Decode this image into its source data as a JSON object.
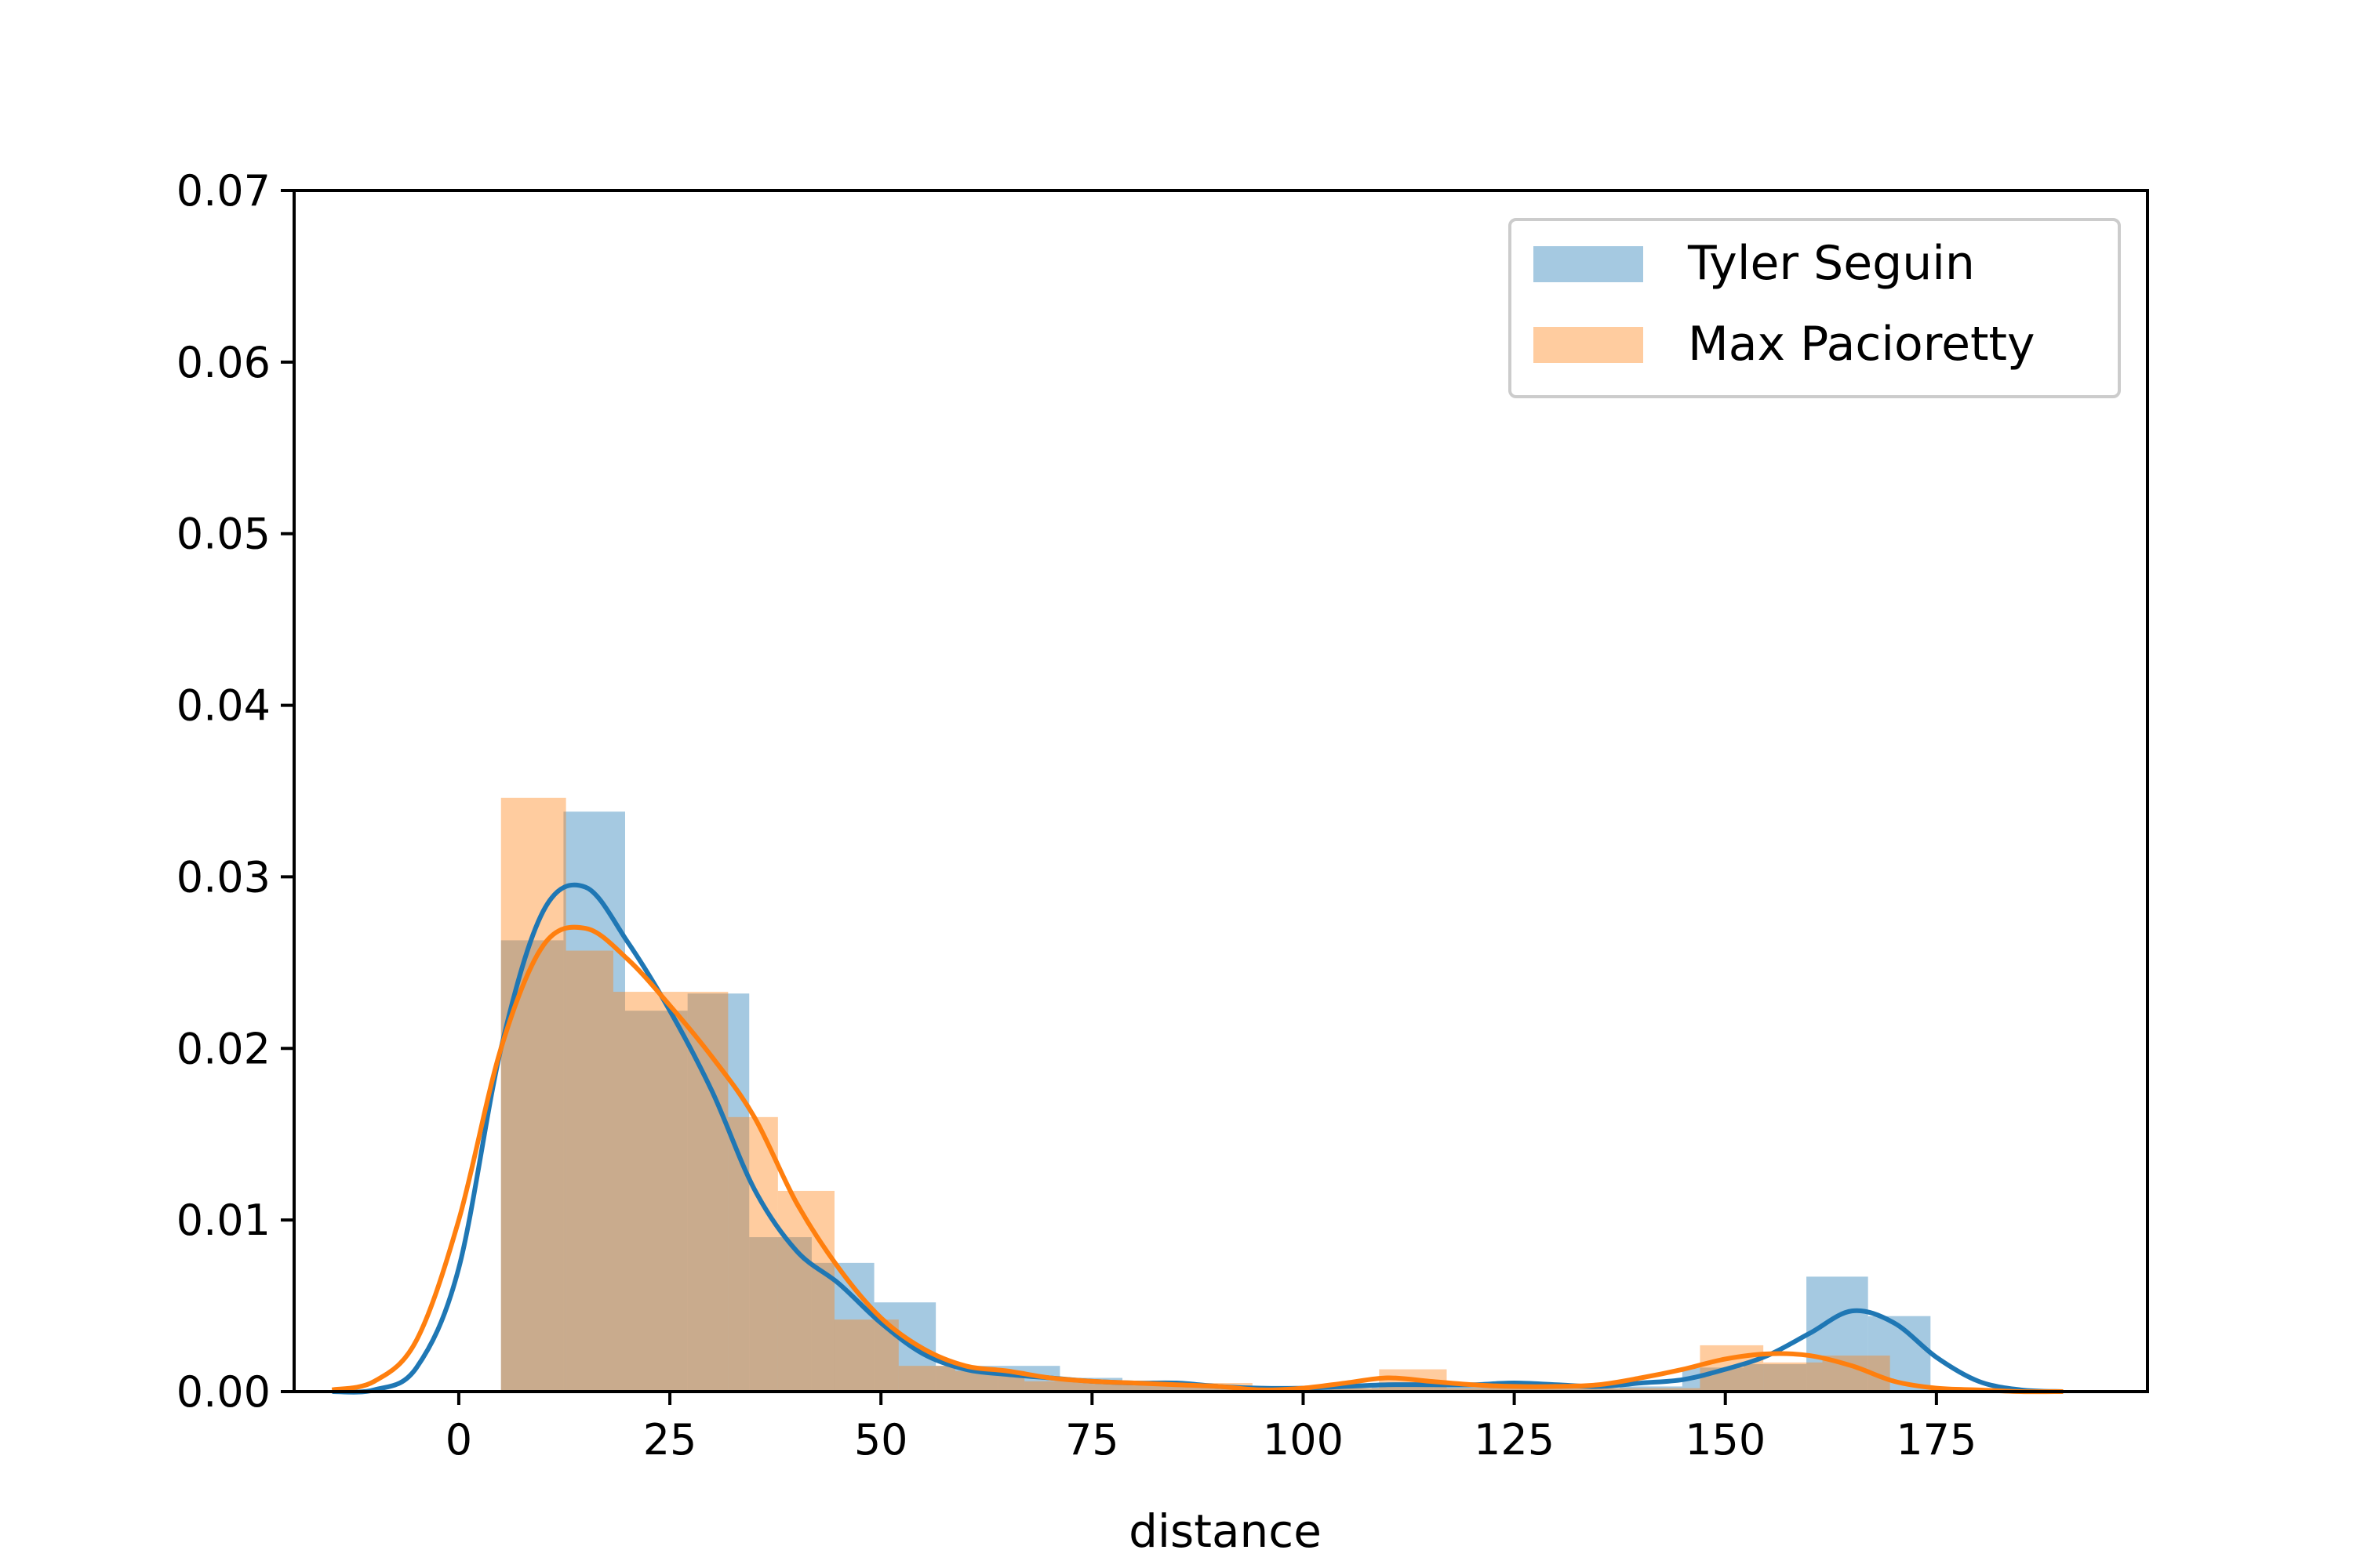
{
  "chart_data": {
    "type": "bar",
    "title": "",
    "xlabel": "distance",
    "ylabel": "",
    "xlim": [
      -19.5,
      200
    ],
    "ylim": [
      0,
      0.07
    ],
    "xticks": [
      0,
      25,
      50,
      75,
      100,
      125,
      150,
      175
    ],
    "yticks": [
      0.0,
      0.01,
      0.02,
      0.03,
      0.04,
      0.05,
      0.06,
      0.07
    ],
    "xtick_labels": [
      "0",
      "25",
      "50",
      "75",
      "100",
      "125",
      "150",
      "175"
    ],
    "ytick_labels": [
      "0.00",
      "0.01",
      "0.02",
      "0.03",
      "0.04",
      "0.05",
      "0.06",
      "0.07"
    ],
    "grid": false,
    "legend_position": "top-right",
    "overlay": "kde",
    "series": [
      {
        "name": "Tyler Seguin",
        "color": "#1f77b4",
        "bins": [
          {
            "x0": 5,
            "x1": 12.4,
            "value": 0.0263
          },
          {
            "x0": 12.4,
            "x1": 19.7,
            "value": 0.0338
          },
          {
            "x0": 19.7,
            "x1": 27.1,
            "value": 0.0222
          },
          {
            "x0": 27.1,
            "x1": 34.4,
            "value": 0.0232
          },
          {
            "x0": 34.4,
            "x1": 41.8,
            "value": 0.009
          },
          {
            "x0": 41.8,
            "x1": 49.2,
            "value": 0.0075
          },
          {
            "x0": 49.2,
            "x1": 56.5,
            "value": 0.0052
          },
          {
            "x0": 56.5,
            "x1": 63.9,
            "value": 0.0015
          },
          {
            "x0": 63.9,
            "x1": 71.2,
            "value": 0.0015
          },
          {
            "x0": 71.2,
            "x1": 78.6,
            "value": 0.0008
          },
          {
            "x0": 78.6,
            "x1": 86.0,
            "value": 0.0006
          },
          {
            "x0": 86.0,
            "x1": 93.3,
            "value": 0.0003
          },
          {
            "x0": 93.3,
            "x1": 100.7,
            "value": 0.0002
          },
          {
            "x0": 100.7,
            "x1": 108.1,
            "value": 0.0002
          },
          {
            "x0": 108.1,
            "x1": 115.4,
            "value": 0.0003
          },
          {
            "x0": 115.4,
            "x1": 122.8,
            "value": 0.0005
          },
          {
            "x0": 122.8,
            "x1": 130.1,
            "value": 0.0005
          },
          {
            "x0": 130.1,
            "x1": 137.5,
            "value": 0.0002
          },
          {
            "x0": 137.5,
            "x1": 144.9,
            "value": 0.0003
          },
          {
            "x0": 144.9,
            "x1": 152.2,
            "value": 0.0014
          },
          {
            "x0": 152.2,
            "x1": 159.6,
            "value": 0.0016
          },
          {
            "x0": 159.6,
            "x1": 166.9,
            "value": 0.0067
          },
          {
            "x0": 166.9,
            "x1": 174.3,
            "value": 0.0044
          }
        ],
        "kde": {
          "x": [
            -15,
            -10,
            -5,
            0,
            5,
            10,
            15,
            20,
            25,
            30,
            35,
            40,
            45,
            50,
            55,
            60,
            65,
            70,
            75,
            80,
            85,
            90,
            95,
            100,
            105,
            110,
            115,
            120,
            125,
            130,
            135,
            140,
            145,
            150,
            155,
            160,
            165,
            170,
            175,
            180,
            185,
            190
          ],
          "y": [
            0.0,
            0.0001,
            0.0014,
            0.0072,
            0.02,
            0.028,
            0.0294,
            0.0262,
            0.0222,
            0.0175,
            0.0118,
            0.0082,
            0.0063,
            0.004,
            0.0022,
            0.0013,
            0.001,
            0.0008,
            0.0006,
            0.0005,
            0.0005,
            0.0003,
            0.0002,
            0.0002,
            0.0003,
            0.0004,
            0.0004,
            0.0004,
            0.0005,
            0.0004,
            0.0003,
            0.0005,
            0.0007,
            0.0013,
            0.0021,
            0.0034,
            0.0047,
            0.004,
            0.002,
            0.0006,
            0.0001,
            0.0
          ]
        }
      },
      {
        "name": "Max Pacioretty",
        "color": "#ff7f0e",
        "bins": [
          {
            "x0": 5,
            "x1": 12.7,
            "value": 0.0346
          },
          {
            "x0": 12.7,
            "x1": 18.3,
            "value": 0.0257
          },
          {
            "x0": 18.3,
            "x1": 31.9,
            "value": 0.0233
          },
          {
            "x0": 31.9,
            "x1": 37.8,
            "value": 0.016
          },
          {
            "x0": 37.8,
            "x1": 44.5,
            "value": 0.0117
          },
          {
            "x0": 44.5,
            "x1": 52.1,
            "value": 0.0042
          },
          {
            "x0": 52.1,
            "x1": 58.8,
            "value": 0.0015
          },
          {
            "x0": 58.8,
            "x1": 67.0,
            "value": 0.0012
          },
          {
            "x0": 67.0,
            "x1": 76.0,
            "value": 0.0006
          },
          {
            "x0": 76.0,
            "x1": 85.0,
            "value": 0.0005
          },
          {
            "x0": 85.0,
            "x1": 94.0,
            "value": 0.0005
          },
          {
            "x0": 94.0,
            "x1": 103.0,
            "value": 0.0001
          },
          {
            "x0": 103.0,
            "x1": 109.0,
            "value": 0.0002
          },
          {
            "x0": 109.0,
            "x1": 117.0,
            "value": 0.0013
          },
          {
            "x0": 117.0,
            "x1": 147.0,
            "value": 0.0002
          },
          {
            "x0": 147.0,
            "x1": 154.5,
            "value": 0.0027
          },
          {
            "x0": 154.5,
            "x1": 161.5,
            "value": 0.0017
          },
          {
            "x0": 161.5,
            "x1": 169.5,
            "value": 0.0021
          }
        ],
        "kde": {
          "x": [
            -15,
            -10,
            -5,
            0,
            5,
            10,
            15,
            20,
            25,
            30,
            35,
            40,
            45,
            50,
            55,
            60,
            65,
            70,
            75,
            80,
            85,
            90,
            95,
            100,
            105,
            110,
            115,
            120,
            125,
            130,
            135,
            140,
            145,
            150,
            155,
            160,
            165,
            170,
            175,
            180,
            185,
            190
          ],
          "y": [
            0.0001,
            0.0006,
            0.003,
            0.01,
            0.02,
            0.026,
            0.027,
            0.0252,
            0.0225,
            0.0195,
            0.016,
            0.011,
            0.0072,
            0.0043,
            0.0025,
            0.0015,
            0.0012,
            0.0008,
            0.0006,
            0.0005,
            0.0004,
            0.0003,
            0.0001,
            0.0002,
            0.0005,
            0.0008,
            0.0006,
            0.0004,
            0.0003,
            0.0003,
            0.0004,
            0.0008,
            0.0013,
            0.0019,
            0.0022,
            0.0021,
            0.0015,
            0.0006,
            0.0002,
            0.0001,
            0.0,
            0.0
          ]
        }
      }
    ]
  }
}
